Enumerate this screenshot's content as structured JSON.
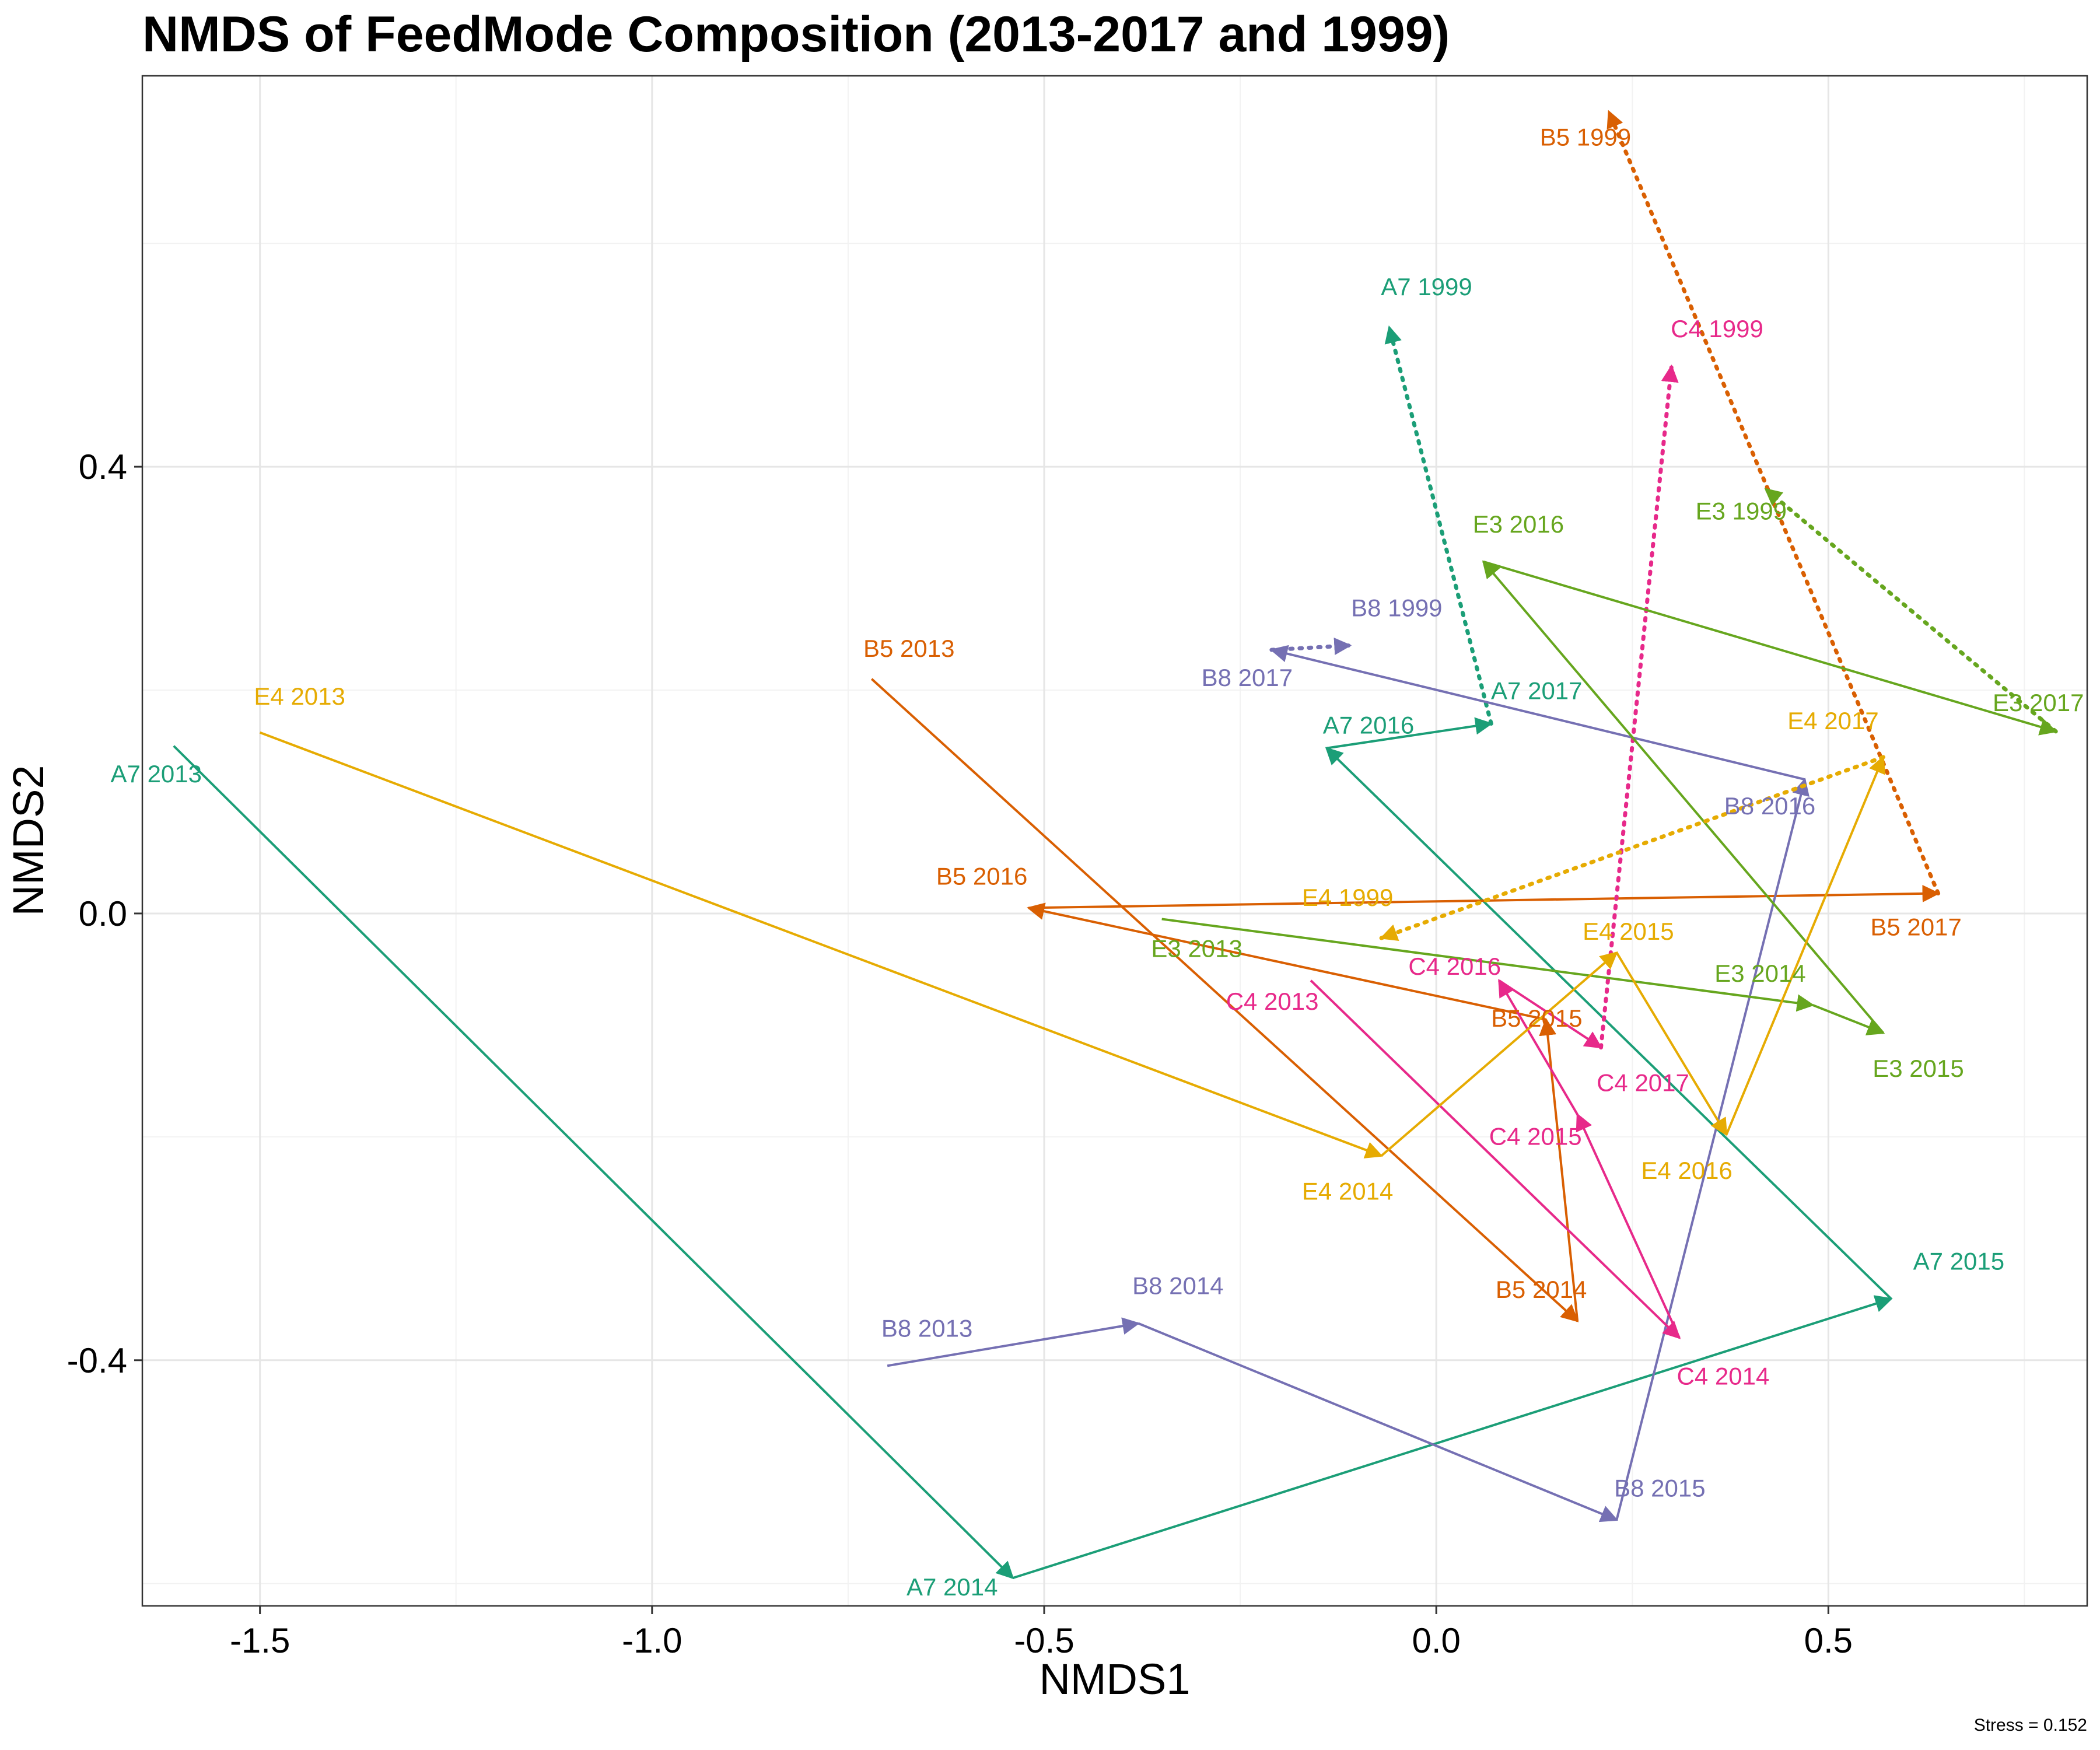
{
  "chart_data": {
    "type": "scatter",
    "title": "NMDS of FeedMode Composition (2013-2017 and 1999)",
    "xlabel": "NMDS1",
    "ylabel": "NMDS2",
    "xlim": [
      -1.65,
      0.83
    ],
    "ylim": [
      -0.62,
      0.75
    ],
    "x_ticks": [
      -1.5,
      -1.0,
      -0.5,
      0.0,
      0.5
    ],
    "x_tick_labels": [
      "-1.5",
      "-1.0",
      "-0.5",
      "0.0",
      "0.5"
    ],
    "y_ticks": [
      -0.4,
      0.0,
      0.4
    ],
    "y_tick_labels": [
      "-0.4",
      "0.0",
      "0.4"
    ],
    "grid": true,
    "annotation": "Stress = 0.152",
    "series": [
      {
        "name": "A7",
        "color": "#1B9E77",
        "points": [
          {
            "label": "A7 2013",
            "x": -1.61,
            "y": 0.15
          },
          {
            "label": "A7 2014",
            "x": -0.54,
            "y": -0.595
          },
          {
            "label": "A7 2015",
            "x": 0.58,
            "y": -0.345
          },
          {
            "label": "A7 2016",
            "x": -0.14,
            "y": 0.148
          },
          {
            "label": "A7 2017",
            "x": 0.07,
            "y": 0.17
          },
          {
            "label": "A7 1999",
            "x": -0.06,
            "y": 0.525
          }
        ]
      },
      {
        "name": "B5",
        "color": "#D95F02",
        "points": [
          {
            "label": "B5 2013",
            "x": -0.72,
            "y": 0.21
          },
          {
            "label": "B5 2014",
            "x": 0.18,
            "y": -0.365
          },
          {
            "label": "B5 2015",
            "x": 0.14,
            "y": -0.095
          },
          {
            "label": "B5 2016",
            "x": -0.52,
            "y": 0.005
          },
          {
            "label": "B5 2017",
            "x": 0.64,
            "y": 0.018
          },
          {
            "label": "B5 1999",
            "x": 0.22,
            "y": 0.718
          }
        ]
      },
      {
        "name": "B8",
        "color": "#7570B3",
        "points": [
          {
            "label": "B8 2013",
            "x": -0.7,
            "y": -0.405
          },
          {
            "label": "B8 2014",
            "x": -0.38,
            "y": -0.367
          },
          {
            "label": "B8 2015",
            "x": 0.23,
            "y": -0.543
          },
          {
            "label": "B8 2016",
            "x": 0.47,
            "y": 0.12
          },
          {
            "label": "B8 2017",
            "x": -0.21,
            "y": 0.236
          },
          {
            "label": "B8 1999",
            "x": -0.11,
            "y": 0.24
          }
        ]
      },
      {
        "name": "C4",
        "color": "#E7298A",
        "points": [
          {
            "label": "C4 2013",
            "x": -0.16,
            "y": -0.06
          },
          {
            "label": "C4 2014",
            "x": 0.31,
            "y": -0.38
          },
          {
            "label": "C4 2015",
            "x": 0.18,
            "y": -0.18
          },
          {
            "label": "C4 2016",
            "x": 0.08,
            "y": -0.06
          },
          {
            "label": "C4 2017",
            "x": 0.21,
            "y": -0.12
          },
          {
            "label": "C4 1999",
            "x": 0.3,
            "y": 0.49
          }
        ]
      },
      {
        "name": "E3",
        "color": "#66A61E",
        "points": [
          {
            "label": "E3 2013",
            "x": -0.35,
            "y": -0.005
          },
          {
            "label": "E3 2014",
            "x": 0.48,
            "y": -0.082
          },
          {
            "label": "E3 2015",
            "x": 0.57,
            "y": -0.107
          },
          {
            "label": "E3 2016",
            "x": 0.06,
            "y": 0.315
          },
          {
            "label": "E3 2017",
            "x": 0.79,
            "y": 0.163
          },
          {
            "label": "E3 1999",
            "x": 0.42,
            "y": 0.38
          }
        ]
      },
      {
        "name": "E4",
        "color": "#E6AB02",
        "points": [
          {
            "label": "E4 2013",
            "x": -1.5,
            "y": 0.162
          },
          {
            "label": "E4 2014",
            "x": -0.07,
            "y": -0.217
          },
          {
            "label": "E4 2015",
            "x": 0.23,
            "y": -0.035
          },
          {
            "label": "E4 2016",
            "x": 0.37,
            "y": -0.198
          },
          {
            "label": "E4 2017",
            "x": 0.57,
            "y": 0.14
          },
          {
            "label": "E4 1999",
            "x": -0.07,
            "y": -0.022
          }
        ]
      }
    ]
  }
}
